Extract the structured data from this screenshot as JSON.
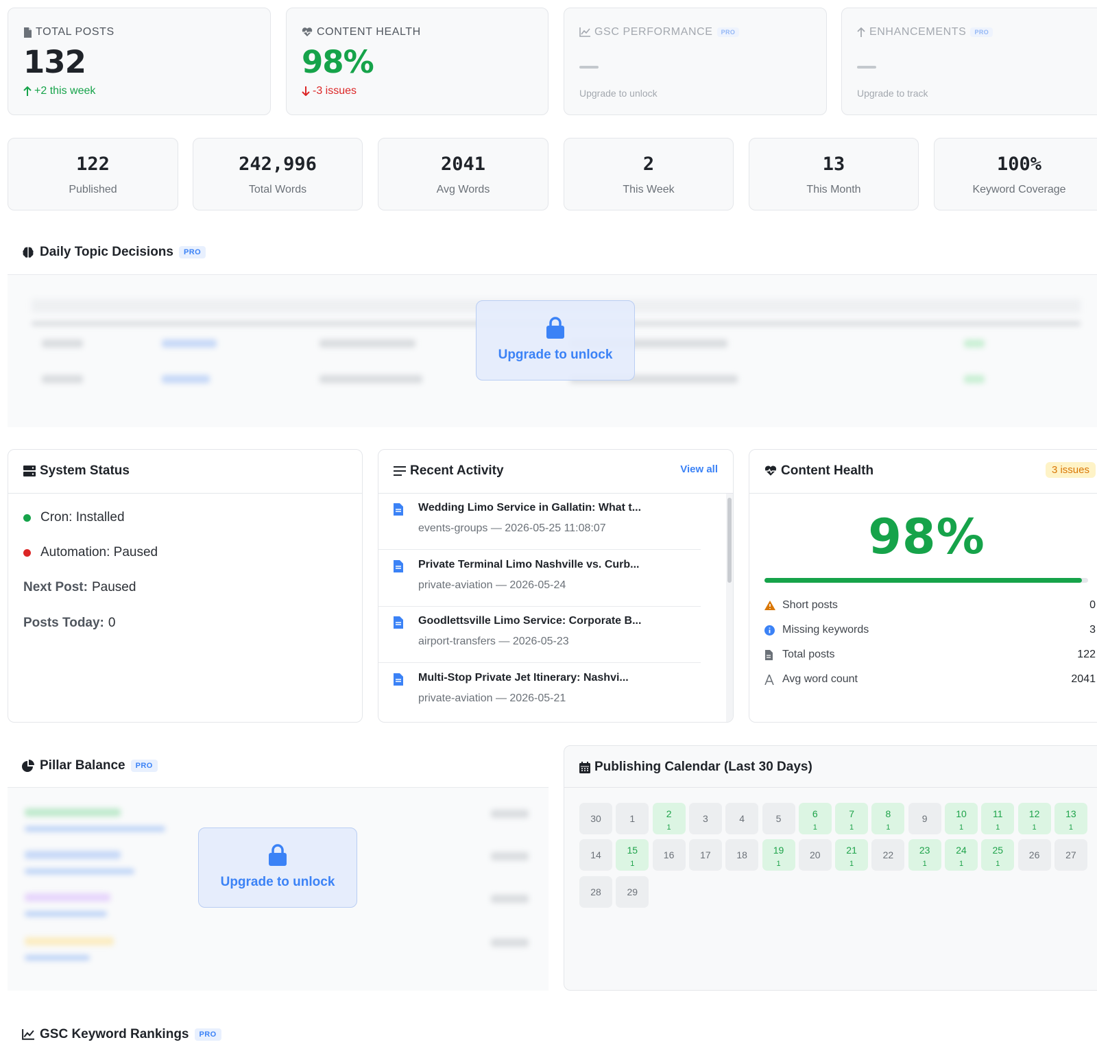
{
  "kpis": {
    "total_posts": {
      "label": "TOTAL POSTS",
      "value": "132",
      "change": "+2 this week",
      "change_color": "#16a34a"
    },
    "content_health": {
      "label": "CONTENT HEALTH",
      "value": "98%",
      "change": "-3 issues",
      "value_color": "#16a34a",
      "change_color": "#dc2626"
    },
    "gsc_performance": {
      "label": "GSC PERFORMANCE",
      "badge": "PRO",
      "subtext": "Upgrade to unlock"
    },
    "enhancements": {
      "label": "ENHANCEMENTS",
      "badge": "PRO",
      "subtext": "Upgrade to track"
    }
  },
  "stats": [
    {
      "value": "122",
      "label": "Published"
    },
    {
      "value": "242,996",
      "label": "Total Words"
    },
    {
      "value": "2041",
      "label": "Avg Words"
    },
    {
      "value": "2",
      "label": "This Week"
    },
    {
      "value": "13",
      "label": "This Month"
    },
    {
      "value": "100%",
      "label": "Keyword Coverage"
    }
  ],
  "daily_topics": {
    "title": "Daily Topic Decisions",
    "badge": "PRO",
    "lock_text": "Upgrade to unlock"
  },
  "system_status": {
    "title": "System Status",
    "cron": "Cron: Installed",
    "automation": "Automation: Paused",
    "next_post_label": "Next Post:",
    "next_post_value": "Paused",
    "posts_today_label": "Posts Today:",
    "posts_today_value": "0"
  },
  "recent_activity": {
    "title": "Recent Activity",
    "view_all": "View all",
    "items": [
      {
        "title": "Wedding Limo Service in Gallatin: What t...",
        "meta": "events-groups — 2026-05-25 11:08:07"
      },
      {
        "title": "Private Terminal Limo Nashville vs. Curb...",
        "meta": "private-aviation — 2026-05-24"
      },
      {
        "title": "Goodlettsville Limo Service: Corporate B...",
        "meta": "airport-transfers — 2026-05-23"
      },
      {
        "title": "Multi-Stop Private Jet Itinerary: Nashvi...",
        "meta": "private-aviation — 2026-05-21"
      }
    ]
  },
  "content_health_panel": {
    "title": "Content Health",
    "badge": "3 issues",
    "score": "98%",
    "score_fraction": 0.98,
    "rows": [
      {
        "label": "Short posts",
        "value": "0",
        "icon": "warning-icon"
      },
      {
        "label": "Missing keywords",
        "value": "3",
        "icon": "info-icon"
      },
      {
        "label": "Total posts",
        "value": "122",
        "icon": "file-icon"
      },
      {
        "label": "Avg word count",
        "value": "2041",
        "icon": "text-icon"
      }
    ]
  },
  "pillar_balance": {
    "title": "Pillar Balance",
    "badge": "PRO",
    "lock_text": "Upgrade to unlock"
  },
  "calendar": {
    "title": "Publishing Calendar (Last 30 Days)",
    "days": [
      {
        "day": "30",
        "count": ""
      },
      {
        "day": "1",
        "count": ""
      },
      {
        "day": "2",
        "count": "1"
      },
      {
        "day": "3",
        "count": ""
      },
      {
        "day": "4",
        "count": ""
      },
      {
        "day": "5",
        "count": ""
      },
      {
        "day": "6",
        "count": "1"
      },
      {
        "day": "7",
        "count": "1"
      },
      {
        "day": "8",
        "count": "1"
      },
      {
        "day": "9",
        "count": ""
      },
      {
        "day": "10",
        "count": "1"
      },
      {
        "day": "11",
        "count": "1"
      },
      {
        "day": "12",
        "count": "1"
      },
      {
        "day": "13",
        "count": "1"
      },
      {
        "day": "14",
        "count": ""
      },
      {
        "day": "15",
        "count": "1"
      },
      {
        "day": "16",
        "count": ""
      },
      {
        "day": "17",
        "count": ""
      },
      {
        "day": "18",
        "count": ""
      },
      {
        "day": "19",
        "count": "1"
      },
      {
        "day": "20",
        "count": ""
      },
      {
        "day": "21",
        "count": "1"
      },
      {
        "day": "22",
        "count": ""
      },
      {
        "day": "23",
        "count": "1"
      },
      {
        "day": "24",
        "count": "1"
      },
      {
        "day": "25",
        "count": "1"
      },
      {
        "day": "26",
        "count": ""
      },
      {
        "day": "27",
        "count": ""
      },
      {
        "day": "28",
        "count": ""
      },
      {
        "day": "29",
        "count": ""
      }
    ]
  },
  "gsc_rankings": {
    "title": "GSC Keyword Rankings",
    "badge": "PRO"
  }
}
